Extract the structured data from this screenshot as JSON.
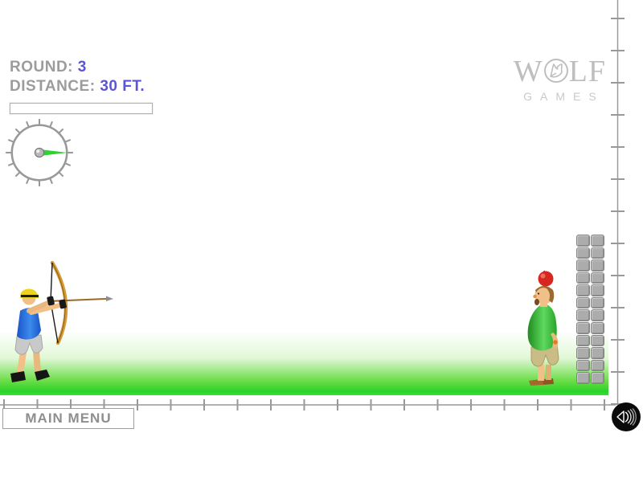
{
  "hud": {
    "round_label": "ROUND:",
    "round_value": "3",
    "distance_label": "DISTANCE:",
    "distance_value": "30 FT.",
    "power_fill_percent": 0
  },
  "gauge": {
    "tick_count": 16,
    "needle_angle_deg": 0
  },
  "logo": {
    "title_w": "W",
    "title_lf": "LF",
    "subtitle": "GAMES"
  },
  "footer": {
    "main_menu_label": "MAIN MENU"
  },
  "icons": {
    "wolf_logo": "wolf-head-icon",
    "sound_button": "speaker-icon"
  },
  "scene": {
    "stone_column_rows": 12,
    "stone_column_cols": 2,
    "apple_on_head": true
  },
  "colors": {
    "hud_label_gray": "#9C9C9C",
    "hud_value_blue": "#5B55D6",
    "needle_green": "#2FD32F",
    "ground_green": "#2BD22B",
    "ruler_gray": "#999999",
    "logo_gray": "#BEBEBE",
    "stone_gray": "#ACACAC",
    "apple_red": "#D6281E",
    "archer_shirt_blue": "#2268DE",
    "target_shirt_green": "#2FAE2F"
  }
}
